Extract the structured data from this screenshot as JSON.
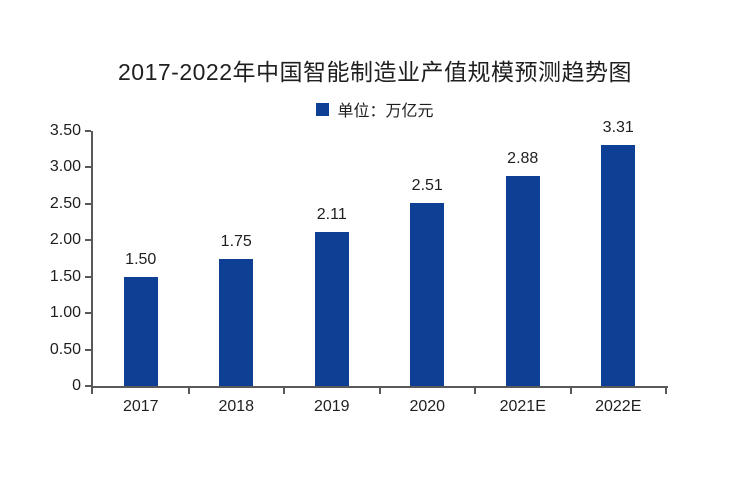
{
  "title": "2017-2022年中国智能制造业产值规模预测趋势图",
  "legend": {
    "label": "单位：万亿元"
  },
  "colors": {
    "bar": "#0d3f95",
    "axis": "#595959",
    "text": "#1f1f1f"
  },
  "chart_data": {
    "type": "bar",
    "title": "2017-2022年中国智能制造业产值规模预测趋势图",
    "legend_label": "单位：万亿元",
    "unit": "万亿元",
    "legend_position": "top",
    "grid": false,
    "categories": [
      "2017",
      "2018",
      "2019",
      "2020",
      "2021E",
      "2022E"
    ],
    "values": [
      1.5,
      1.75,
      2.11,
      2.51,
      2.88,
      3.31
    ],
    "value_labels": [
      "1.50",
      "1.75",
      "2.11",
      "2.51",
      "2.88",
      "3.31"
    ],
    "xlabel": "",
    "ylabel": "",
    "ylim": [
      0,
      3.5
    ],
    "ytick_step": 0.5,
    "ytick_labels": [
      "0",
      "0.50",
      "1.00",
      "1.50",
      "2.00",
      "2.50",
      "3.00",
      "3.50"
    ],
    "bar_color": "#0d3f95"
  }
}
